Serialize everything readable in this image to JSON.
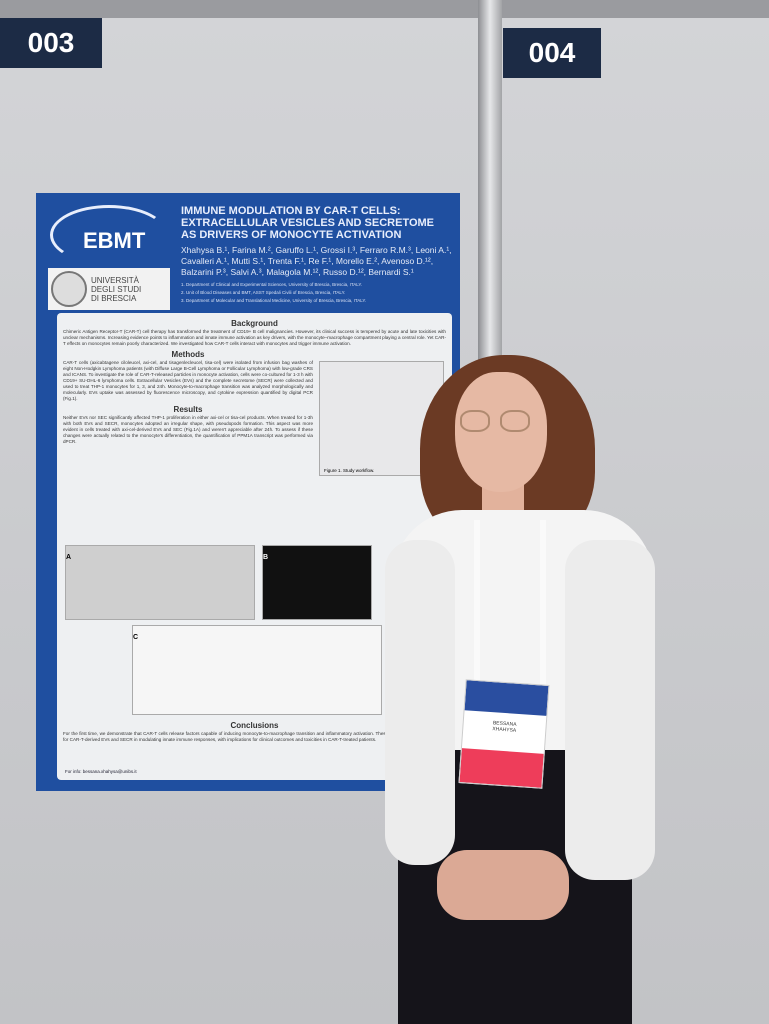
{
  "booths": {
    "left": "003",
    "right": "004"
  },
  "poster": {
    "logo": "EBMT",
    "university": "UNIVERSITÀ\nDEGLI STUDI\nDI BRESCIA",
    "title": "IMMUNE MODULATION BY CAR-T CELLS: EXTRACELLULAR VESICLES AND SECRETOME AS DRIVERS OF MONOCYTE ACTIVATION",
    "authors": "Xhahysa B.¹, Farina M.², Garuffo L.¹, Grossi I.³, Ferraro R.M.³, Leoni A.¹, Cavalleri A.¹, Mutti S.¹, Trenta F.¹, Re F.¹, Morello E.², Avenoso D.¹², Balzarini P.³, Salvi A.³, Malagola M.¹², Russo D.¹², Bernardi S.¹",
    "affiliations": [
      "1. Department of Clinical and Experimental Sciences, University of Brescia, Brescia, ITALY.",
      "2. Unit of Blood Diseases and BMT, ASST Spedali Civili of Brescia, Brescia, ITALY.",
      "3. Department of Molecular and Translational Medicine, University of Brescia, Brescia, ITALY."
    ],
    "sections": {
      "background_h": "Background",
      "background": "Chimeric Antigen Receptor-T (CAR-T) cell therapy has transformed the treatment of CD19+ B cell malignancies. However, its clinical success is tempered by acute and late toxicities with unclear mechanisms. Increasing evidence points to inflammation and innate immune activation as key drivers, with the monocyte–macrophage compartment playing a central role. Yet CAR-T effects on monocytes remain poorly characterized. We investigated how CAR-T cells interact with monocytes and trigger immune activation.",
      "methods_h": "Methods",
      "methods": "CAR-T cells (axicabtagene ciloleucel, axi-cel, and tisagenlecleucel, tisa-cel) were isolated from infusion bag washes of eight Non-Hodgkin Lymphoma patients (with Diffuse Large B-Cell Lymphoma or Follicular Lymphoma) with low-grade CRS and ICANS. To investigate the role of CAR-T-released particles in monocyte activation, cells were co-cultured for 1-3 h with CD19+ SU-DHL-6 lymphoma cells. Extracellular Vesicles (EVs) and the complete secretome (SECR) were collected and used to treat THP-1 monocytes for 1, 3, and 24h. Monocyte-to-macrophage transition was analyzed morphologically and molecularly. EVs uptake was assessed by fluorescence microscopy, and cytokine expression quantified by digital PCR (Fig.1).",
      "figure1_caption": "Figure 1. Study workflow.",
      "results_h": "Results",
      "results": "Neither EVs nor SEC significantly affected THP-1 proliferation in either axi-cel or tisa-cel products. When treated for 1-3h with both EVs and SECR, monocytes adopted an irregular shape, with pseudopods formation. This aspect was more evident in cells treated with axi-cel-derived EVs and SEC (Fig.1A) and weren't appreciable after 24h. To assess if these changes were actually related to the monocyte's differentiation, the quantification of PPM1A transcript was performed via dPCR.",
      "conclusions_h": "Conclusions",
      "conclusions": "For the first time, we demonstrate that CAR-T cells release factors capable of inducing monocyte-to-macrophage transition and inflammatory activation. These findings highlight a key role for CAR-T-derived EVs and SECR in modulating innate immune responses, with implications for clinical outcomes and toxicities in CAR-T-treated patients.",
      "info": "For info: bessana.xhahysa@unibs.it"
    },
    "figure_labels": [
      "A",
      "B",
      "C"
    ]
  },
  "badge": {
    "name": "BESSANA\nXHAHYSA"
  },
  "colors": {
    "poster_blue": "#1f4fa0",
    "booth_label": "#1c2b45",
    "badge_pink": "#ee3d5a"
  }
}
